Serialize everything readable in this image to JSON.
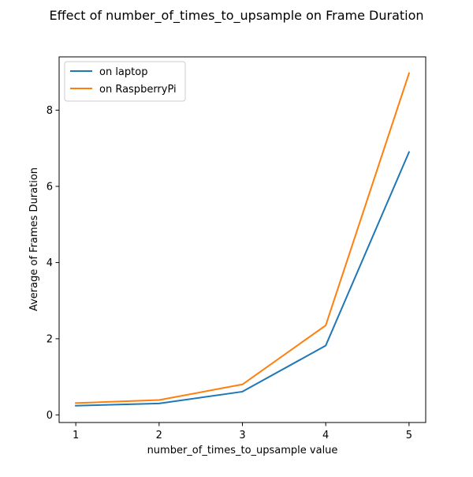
{
  "chart_data": {
    "type": "line",
    "title": "Effect of number_of_times_to_upsample on Frame Duration",
    "xlabel": "number_of_times_to_upsample value",
    "ylabel": "Average of Frames Duration",
    "x": [
      1,
      2,
      3,
      4,
      5
    ],
    "xticks": [
      1,
      2,
      3,
      4,
      5
    ],
    "yticks": [
      0,
      2,
      4,
      6,
      8
    ],
    "xlim": [
      0.8,
      5.2
    ],
    "ylim": [
      -0.2,
      9.4
    ],
    "grid": false,
    "legend_position": "top-left",
    "series": [
      {
        "name": "on laptop",
        "color": "#1f77b4",
        "values": [
          0.24,
          0.3,
          0.61,
          1.82,
          6.9
        ]
      },
      {
        "name": "on RaspberryPi",
        "color": "#ff7f0e",
        "values": [
          0.31,
          0.39,
          0.8,
          2.35,
          8.97
        ]
      }
    ]
  }
}
